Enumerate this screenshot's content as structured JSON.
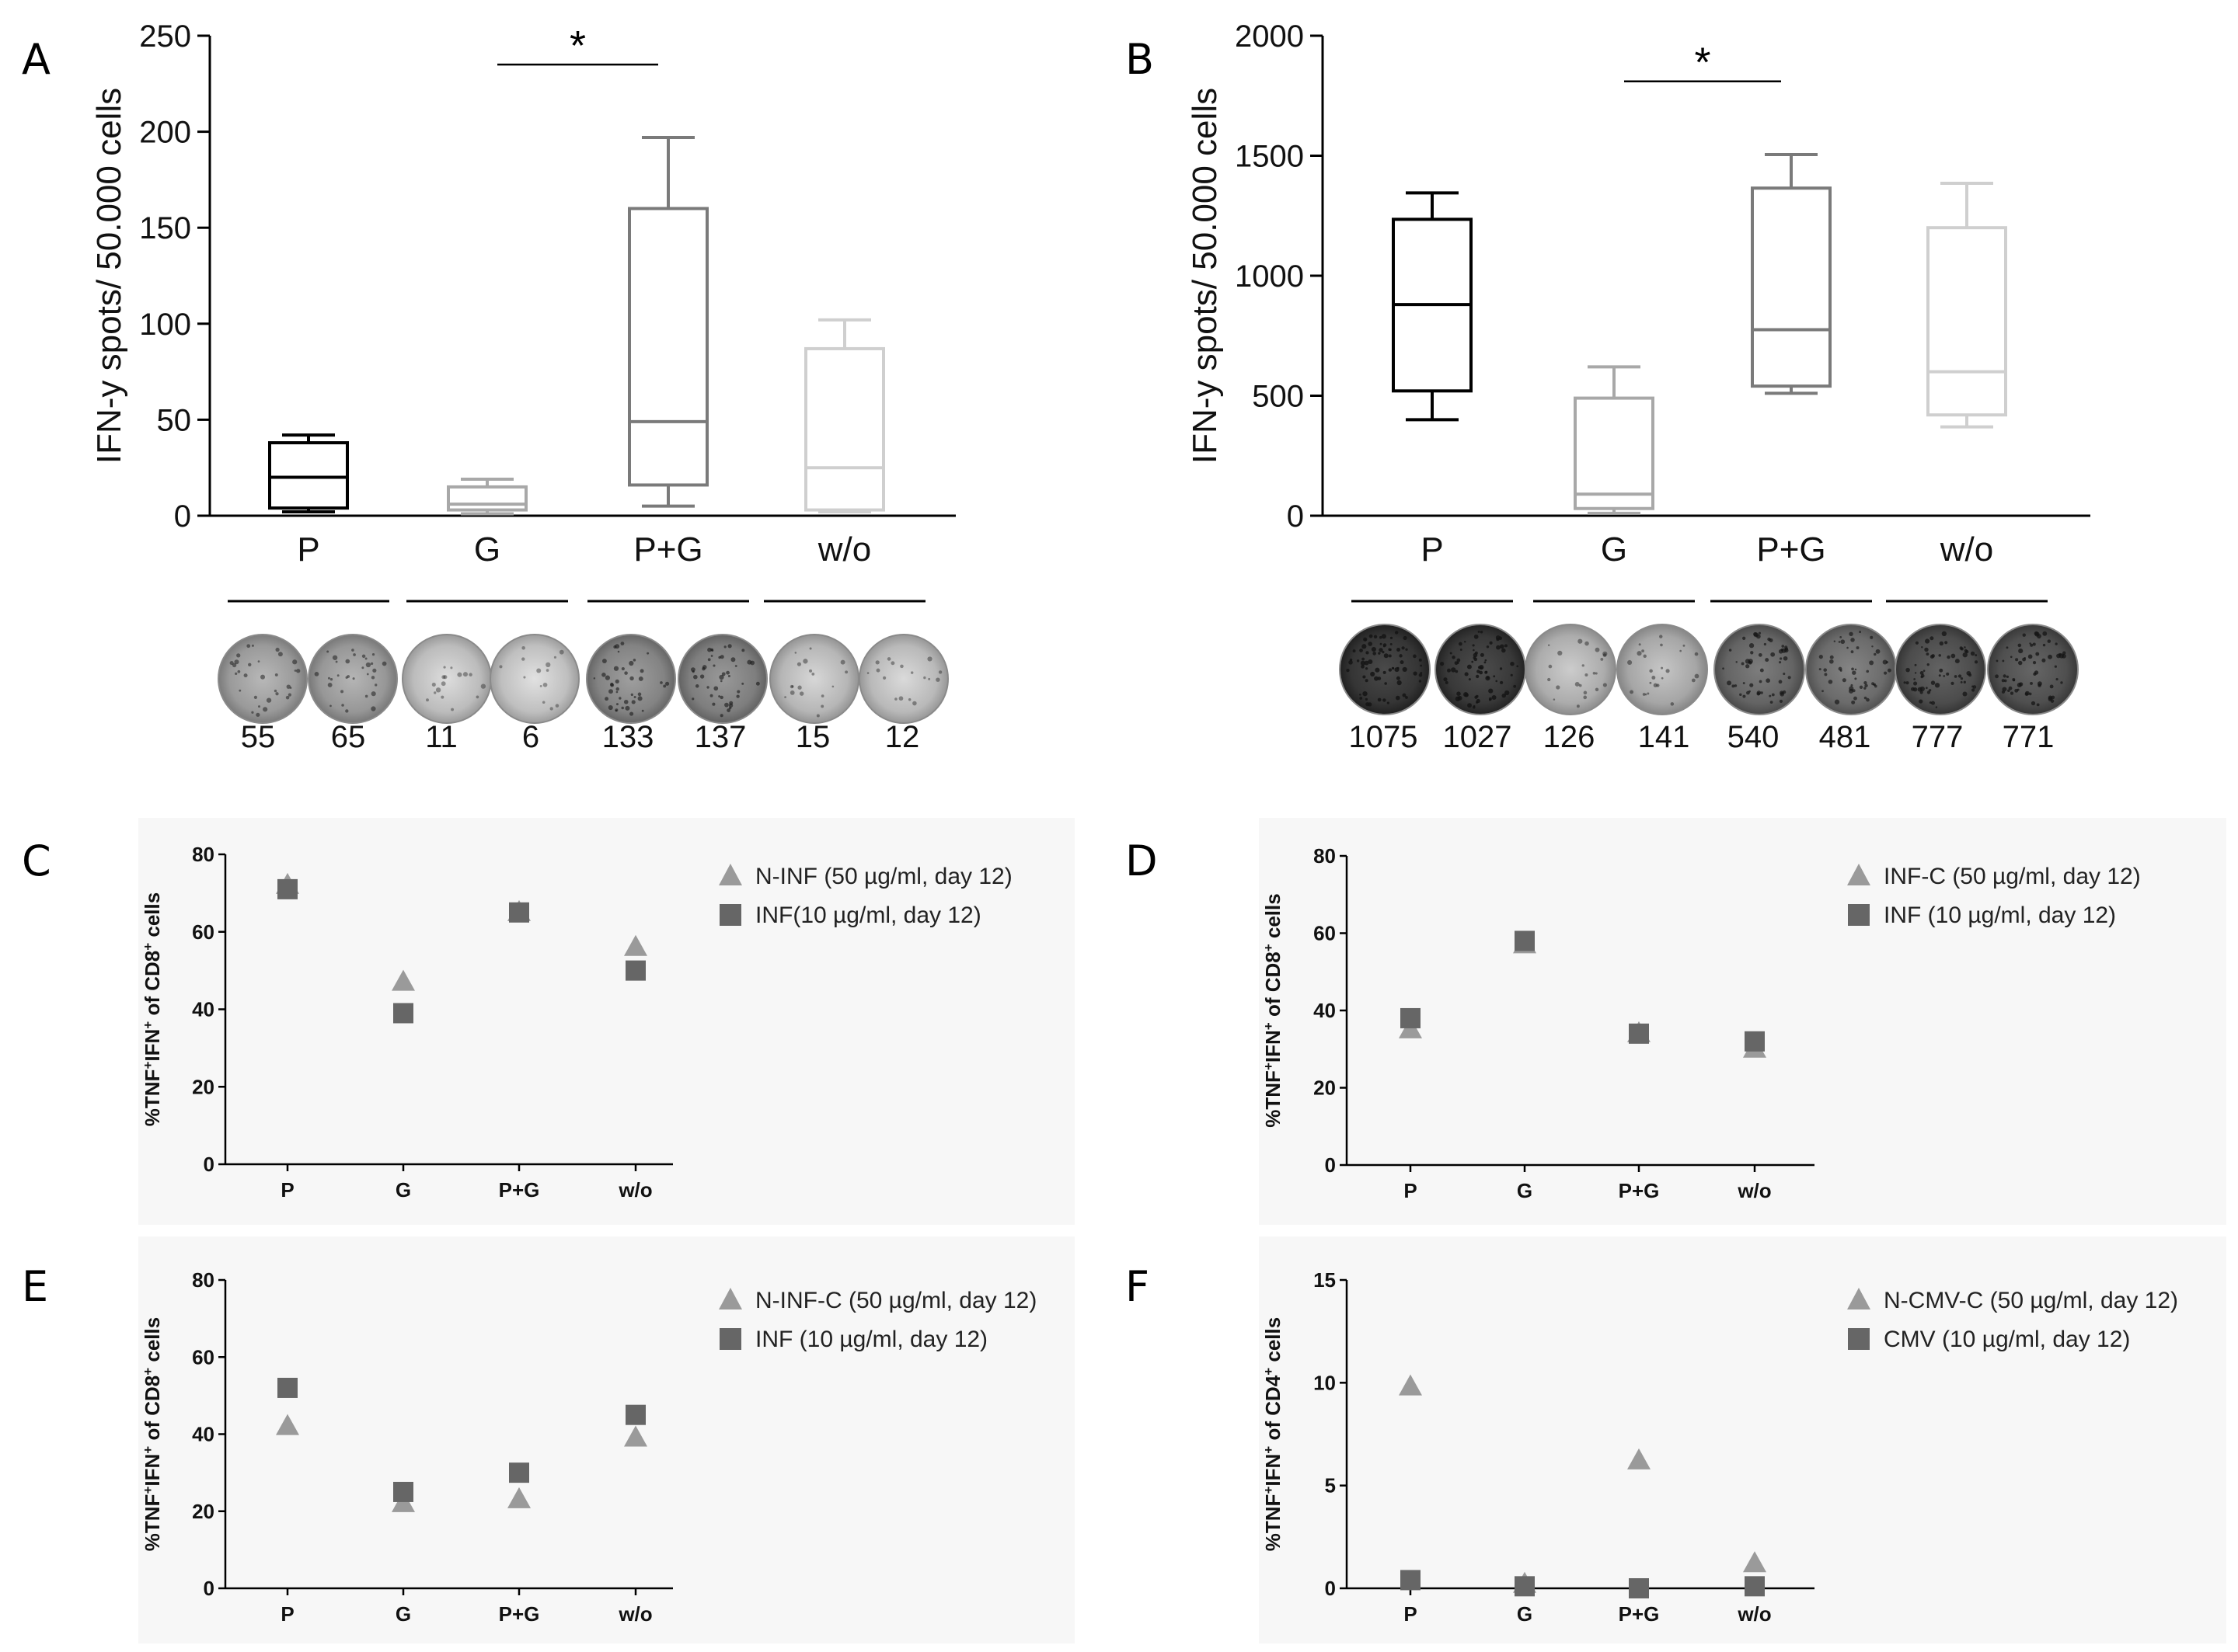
{
  "chart_data": [
    {
      "panel": "A",
      "type": "box",
      "ylabel": "IFN-y spots/ 50.000 cells",
      "ylim": [
        0,
        250
      ],
      "yticks": [
        0,
        50,
        100,
        150,
        200,
        250
      ],
      "categories": [
        "P",
        "G",
        "P+G",
        "w/o"
      ],
      "colors": [
        "#000000",
        "#a8a8a8",
        "#7a7a7a",
        "#cfcfcf"
      ],
      "boxes": [
        {
          "min": 2,
          "q1": 4,
          "median": 20,
          "q3": 38,
          "max": 42
        },
        {
          "min": 1,
          "q1": 3,
          "median": 6,
          "q3": 15,
          "max": 19
        },
        {
          "min": 5,
          "q1": 16,
          "median": 49,
          "q3": 160,
          "max": 197
        },
        {
          "min": 2,
          "q1": 3,
          "median": 25,
          "q3": 87,
          "max": 102
        }
      ],
      "significance": {
        "from": 1,
        "to": 2,
        "label": "*",
        "y": 235
      },
      "well_counts": [
        "55",
        "65",
        "11",
        "6",
        "133",
        "137",
        "15",
        "12"
      ],
      "well_darkness": [
        0.3,
        0.32,
        0.08,
        0.06,
        0.45,
        0.48,
        0.12,
        0.1
      ]
    },
    {
      "panel": "B",
      "type": "box",
      "ylabel": "IFN-y spots/ 50.000 cells",
      "ylim": [
        0,
        2000
      ],
      "yticks": [
        0,
        500,
        1000,
        1500,
        2000
      ],
      "categories": [
        "P",
        "G",
        "P+G",
        "w/o"
      ],
      "colors": [
        "#000000",
        "#a8a8a8",
        "#7a7a7a",
        "#cfcfcf"
      ],
      "boxes": [
        {
          "min": 400,
          "q1": 520,
          "median": 880,
          "q3": 1235,
          "max": 1345
        },
        {
          "min": 10,
          "q1": 30,
          "median": 90,
          "q3": 490,
          "max": 620
        },
        {
          "min": 510,
          "q1": 540,
          "median": 775,
          "q3": 1365,
          "max": 1505
        },
        {
          "min": 370,
          "q1": 420,
          "median": 600,
          "q3": 1200,
          "max": 1385
        }
      ],
      "significance": {
        "from": 1,
        "to": 2,
        "label": "*",
        "y": 1810
      },
      "well_counts": [
        "1075",
        "1027",
        "126",
        "141",
        "540",
        "481",
        "777",
        "771"
      ],
      "well_darkness": [
        0.95,
        0.93,
        0.18,
        0.22,
        0.65,
        0.6,
        0.8,
        0.78
      ]
    },
    {
      "panel": "C",
      "type": "scatter",
      "ylabel": "%TNF+IFN+ of CD8+ cells",
      "ylabel_parts": [
        "%TNF",
        "+",
        "IFN",
        "+",
        " of CD8",
        "+",
        " cells"
      ],
      "ylim": [
        0,
        80
      ],
      "yticks": [
        0,
        20,
        40,
        60,
        80
      ],
      "categories": [
        "P",
        "G",
        "P+G",
        "w/o"
      ],
      "series": [
        {
          "name": "N-INF (50 µg/ml, day 12)",
          "marker": "triangle",
          "color": "#9a9a9a",
          "values": [
            72,
            47,
            65,
            56
          ]
        },
        {
          "name": "INF(10 µg/ml, day 12)",
          "marker": "square",
          "color": "#666666",
          "values": [
            71,
            39,
            65,
            50
          ]
        }
      ]
    },
    {
      "panel": "D",
      "type": "scatter",
      "ylabel": "%TNF+IFN+ of CD8+ cells",
      "ylabel_parts": [
        "%TNF",
        "+",
        "IFN",
        "+",
        " of CD8",
        "+",
        " cells"
      ],
      "ylim": [
        0,
        80
      ],
      "yticks": [
        0,
        20,
        40,
        60,
        80
      ],
      "categories": [
        "P",
        "G",
        "P+G",
        "w/o"
      ],
      "series": [
        {
          "name": "INF-C (50 µg/ml, day 12)",
          "marker": "triangle",
          "color": "#9a9a9a",
          "values": [
            35,
            57,
            34,
            30
          ]
        },
        {
          "name": "INF (10 µg/ml, day 12)",
          "marker": "square",
          "color": "#666666",
          "values": [
            38,
            58,
            34,
            32
          ]
        }
      ]
    },
    {
      "panel": "E",
      "type": "scatter",
      "ylabel": "%TNF+IFN+ of CD8+ cells",
      "ylabel_parts": [
        "%TNF",
        "+",
        "IFN",
        "+",
        " of CD8",
        "+",
        " cells"
      ],
      "ylim": [
        0,
        80
      ],
      "yticks": [
        0,
        20,
        40,
        60,
        80
      ],
      "categories": [
        "P",
        "G",
        "P+G",
        "w/o"
      ],
      "series": [
        {
          "name": "N-INF-C (50 µg/ml, day 12)",
          "marker": "triangle",
          "color": "#9a9a9a",
          "values": [
            42,
            22,
            23,
            39
          ]
        },
        {
          "name": "INF (10 µg/ml, day 12)",
          "marker": "square",
          "color": "#666666",
          "values": [
            52,
            25,
            30,
            45
          ]
        }
      ]
    },
    {
      "panel": "F",
      "type": "scatter",
      "ylabel": "%TNF+IFN+ of CD4+ cells",
      "ylabel_parts": [
        "%TNF",
        "+",
        "IFN",
        "+",
        " of CD4",
        "+",
        " cells"
      ],
      "ylim": [
        0,
        15
      ],
      "yticks": [
        0,
        5,
        10,
        15
      ],
      "categories": [
        "P",
        "G",
        "P+G",
        "w/o"
      ],
      "series": [
        {
          "name": "N-CMV-C (50 µg/ml, day 12)",
          "marker": "triangle",
          "color": "#9a9a9a",
          "values": [
            9.8,
            0.2,
            6.2,
            1.2
          ]
        },
        {
          "name": "CMV (10 µg/ml, day 12)",
          "marker": "square",
          "color": "#666666",
          "values": [
            0.4,
            0.1,
            0.0,
            0.1
          ]
        }
      ]
    }
  ]
}
